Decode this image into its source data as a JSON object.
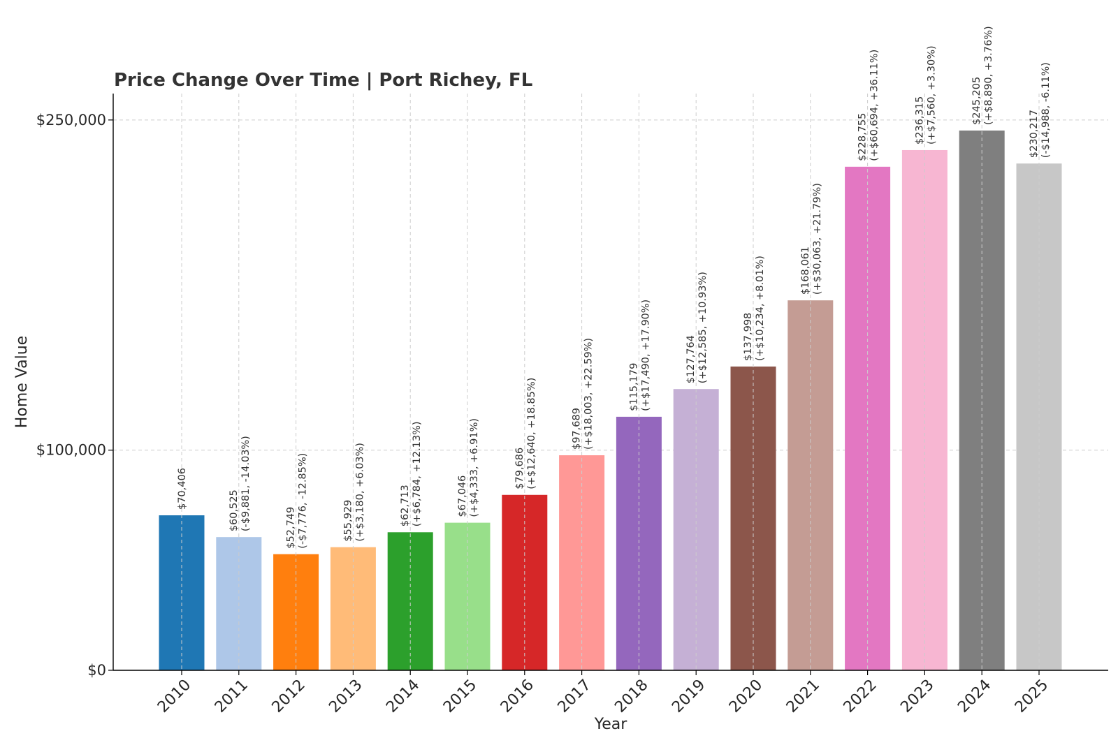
{
  "chart_data": {
    "type": "bar",
    "title": "Price Change Over Time | Port Richey, FL",
    "xlabel": "Year",
    "ylabel": "Home Value",
    "ylim": [
      0,
      262000
    ],
    "yticks": [
      0,
      100000,
      250000
    ],
    "ytick_labels": [
      "$0",
      "$100,000",
      "$250,000"
    ],
    "grid": true,
    "categories": [
      "2010",
      "2011",
      "2012",
      "2013",
      "2014",
      "2015",
      "2016",
      "2017",
      "2018",
      "2019",
      "2020",
      "2021",
      "2022",
      "2023",
      "2024",
      "2025"
    ],
    "values": [
      70406,
      60525,
      52749,
      55929,
      62713,
      67046,
      79686,
      97689,
      115179,
      127764,
      137998,
      168061,
      228755,
      236315,
      245205,
      230217
    ],
    "value_labels": [
      "$70,406",
      "$60,525",
      "$52,749",
      "$55,929",
      "$62,713",
      "$67,046",
      "$79,686",
      "$97,689",
      "$115,179",
      "$127,764",
      "$137,998",
      "$168,061",
      "$228,755",
      "$236,315",
      "$245,205",
      "$230,217"
    ],
    "change_labels": [
      "",
      "(-$9,881, -14.03%)",
      "(-$7,776, -12.85%)",
      "(+$3,180, +6.03%)",
      "(+$6,784, +12.13%)",
      "(+$4,333, +6.91%)",
      "(+$12,640, +18.85%)",
      "(+$18,003, +22.59%)",
      "(+$17,490, +17.90%)",
      "(+$12,585, +10.93%)",
      "(+$10,234, +8.01%)",
      "(+$30,063, +21.79%)",
      "(+$60,694, +36.11%)",
      "(+$7,560, +3.30%)",
      "(+$8,890, +3.76%)",
      "(-$14,988, -6.11%)"
    ],
    "colors": [
      "#1f77b4",
      "#aec7e8",
      "#ff7f0e",
      "#ffbb78",
      "#2ca02c",
      "#98df8a",
      "#d62728",
      "#ff9896",
      "#9467bd",
      "#c5b0d5",
      "#8c564b",
      "#c49c94",
      "#e377c2",
      "#f7b6d2",
      "#7f7f7f",
      "#c7c7c7"
    ]
  }
}
